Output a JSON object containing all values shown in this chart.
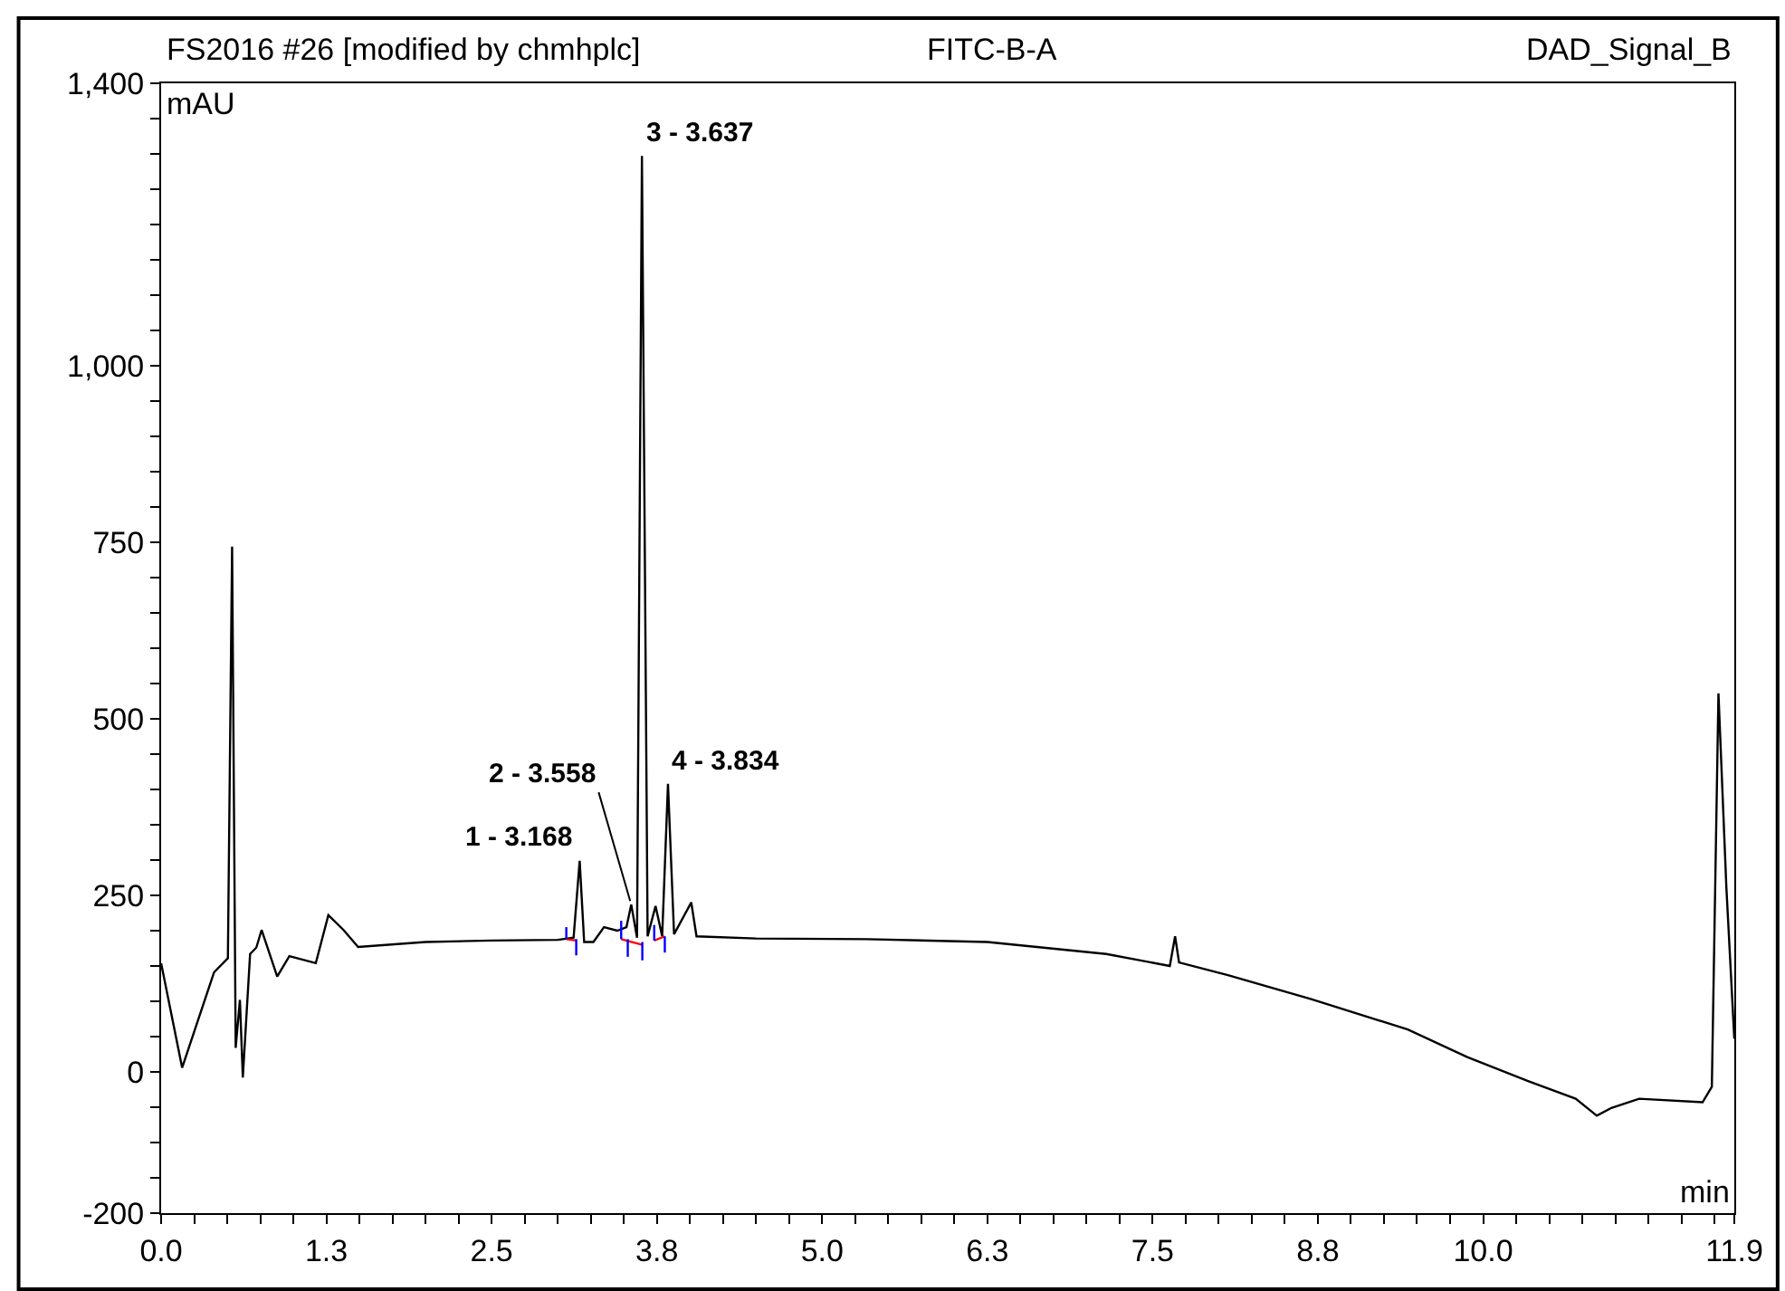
{
  "chart_data": {
    "type": "line",
    "title": "FS2016 #26 [modified by chmhplc]",
    "annotations": [
      "FITC-B-A",
      "DAD_Signal_B",
      {
        "text": "3 - 3.637",
        "x": 3.637,
        "y": 1297
      },
      {
        "text": "4 - 3.834",
        "x": 3.834,
        "y": 408
      },
      {
        "text": "1 - 3.168",
        "x": 3.166,
        "y": 299
      },
      {
        "text": "2 - 3.558",
        "x": 3.556,
        "y": 237
      }
    ],
    "xlabel": "min",
    "ylabel": "mAU",
    "series": [
      {
        "color": "#000000",
        "x": [
          0,
          0.159,
          0.4,
          0.505,
          0.537,
          0.564,
          0.596,
          0.618,
          0.673,
          0.72,
          0.76,
          0.878,
          0.97,
          1.17,
          1.265,
          1.38,
          1.49,
          2.0,
          2.5,
          3.0,
          3.12,
          3.166,
          3.2,
          3.27,
          3.35,
          3.45,
          3.52,
          3.556,
          3.6,
          3.637,
          3.68,
          3.74,
          3.79,
          3.834,
          3.88,
          4.01,
          4.05,
          4.5,
          5.34,
          6.25,
          7.15,
          7.63,
          7.67,
          7.7,
          8.07,
          8.7,
          9.43,
          9.88,
          10.34,
          10.7,
          10.86,
          10.97,
          11.18,
          11.66,
          11.73,
          11.78,
          11.84,
          11.9
        ],
        "values": [
          154,
          6,
          141,
          161,
          744,
          34,
          102,
          -8,
          167,
          176,
          201,
          135,
          164,
          154,
          222,
          201,
          177,
          184,
          186,
          187,
          190,
          299,
          184,
          184,
          205,
          200,
          205,
          237,
          190,
          1297,
          192,
          235,
          192,
          408,
          195,
          240,
          192,
          189,
          188,
          184,
          167,
          150,
          192,
          155,
          137,
          103,
          60,
          21,
          -13,
          -38,
          -62,
          -51,
          -38,
          -43,
          -21,
          536,
          261,
          47
        ]
      },
      {
        "color": "#ff0000",
        "x": [
          3.065,
          3.14,
          null,
          3.48,
          3.64,
          null,
          3.73,
          3.81
        ],
        "values": [
          188,
          186,
          null,
          188,
          180,
          null,
          186,
          192
        ]
      },
      {
        "color": "#0000ff",
        "x": [
          3.065,
          3.065,
          null,
          3.14,
          3.14,
          null,
          3.48,
          3.48,
          null,
          3.53,
          3.53,
          null,
          3.64,
          3.64,
          null,
          3.73,
          3.73,
          null,
          3.81,
          3.81
        ],
        "values": [
          188,
          205,
          null,
          165,
          188,
          null,
          188,
          214,
          null,
          163,
          188,
          null,
          158,
          184,
          null,
          186,
          208,
          null,
          169,
          192
        ]
      }
    ],
    "xlim": [
      0,
      11.9
    ],
    "ylim": [
      -200,
      1400
    ],
    "xticks": [
      {
        "value": 0,
        "label": "0.0"
      },
      {
        "value": 1.25,
        "label": "1.3"
      },
      {
        "value": 2.5,
        "label": "2.5"
      },
      {
        "value": 3.75,
        "label": "3.8"
      },
      {
        "value": 5,
        "label": "5.0"
      },
      {
        "value": 6.25,
        "label": "6.3"
      },
      {
        "value": 7.5,
        "label": "7.5"
      },
      {
        "value": 8.75,
        "label": "8.8"
      },
      {
        "value": 10,
        "label": "10.0"
      },
      {
        "value": 11.9,
        "label": "11.9"
      },
      {
        "value": 0.25,
        "label": null
      },
      {
        "value": 0.5,
        "label": null
      },
      {
        "value": 0.75,
        "label": null
      },
      {
        "value": 1.0,
        "label": null
      },
      {
        "value": 1.5,
        "label": null
      },
      {
        "value": 1.75,
        "label": null
      },
      {
        "value": 2.0,
        "label": null
      },
      {
        "value": 2.25,
        "label": null
      },
      {
        "value": 2.75,
        "label": null
      },
      {
        "value": 3.0,
        "label": null
      },
      {
        "value": 3.25,
        "label": null
      },
      {
        "value": 3.5,
        "label": null
      },
      {
        "value": 4.0,
        "label": null
      },
      {
        "value": 4.25,
        "label": null
      },
      {
        "value": 4.5,
        "label": null
      },
      {
        "value": 4.75,
        "label": null
      },
      {
        "value": 5.25,
        "label": null
      },
      {
        "value": 5.5,
        "label": null
      },
      {
        "value": 5.75,
        "label": null
      },
      {
        "value": 6.0,
        "label": null
      },
      {
        "value": 6.5,
        "label": null
      },
      {
        "value": 6.75,
        "label": null
      },
      {
        "value": 7.0,
        "label": null
      },
      {
        "value": 7.25,
        "label": null
      },
      {
        "value": 7.75,
        "label": null
      },
      {
        "value": 8.0,
        "label": null
      },
      {
        "value": 8.25,
        "label": null
      },
      {
        "value": 8.5,
        "label": null
      },
      {
        "value": 9.0,
        "label": null
      },
      {
        "value": 9.25,
        "label": null
      },
      {
        "value": 9.5,
        "label": null
      },
      {
        "value": 9.75,
        "label": null
      },
      {
        "value": 10.25,
        "label": null
      },
      {
        "value": 10.5,
        "label": null
      },
      {
        "value": 10.75,
        "label": null
      },
      {
        "value": 11.0,
        "label": null
      },
      {
        "value": 11.25,
        "label": null
      },
      {
        "value": 11.5,
        "label": null
      },
      {
        "value": 11.75,
        "label": null
      }
    ],
    "yticks": [
      -200,
      0,
      250,
      500,
      750,
      {
        "value": 1000,
        "label": "1,000"
      },
      {
        "value": 1400,
        "label": "1,400"
      },
      {
        "value": -150,
        "label": null
      },
      {
        "value": -100,
        "label": null
      },
      {
        "value": -50,
        "label": null
      },
      {
        "value": 50,
        "label": null
      },
      {
        "value": 100,
        "label": null
      },
      {
        "value": 150,
        "label": null
      },
      {
        "value": 200,
        "label": null
      },
      {
        "value": 300,
        "label": null
      },
      {
        "value": 350,
        "label": null
      },
      {
        "value": 400,
        "label": null
      },
      {
        "value": 450,
        "label": null
      },
      {
        "value": 550,
        "label": null
      },
      {
        "value": 600,
        "label": null
      },
      {
        "value": 650,
        "label": null
      },
      {
        "value": 700,
        "label": null
      },
      {
        "value": 800,
        "label": null
      },
      {
        "value": 850,
        "label": null
      },
      {
        "value": 900,
        "label": null
      },
      {
        "value": 950,
        "label": null
      },
      {
        "value": 1050,
        "label": null
      },
      {
        "value": 1100,
        "label": null
      },
      {
        "value": 1150,
        "label": null
      },
      {
        "value": 1200,
        "label": null
      },
      {
        "value": 1250,
        "label": null
      },
      {
        "value": 1300,
        "label": null
      },
      {
        "value": 1350,
        "label": null
      }
    ]
  }
}
